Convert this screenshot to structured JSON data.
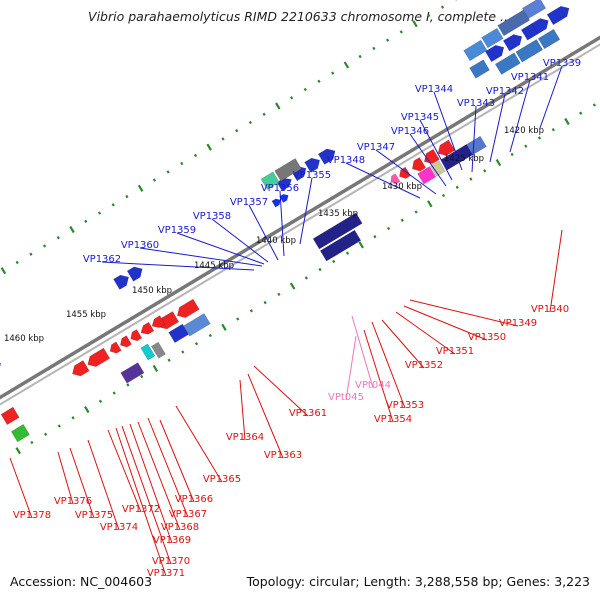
{
  "title": "Vibrio parahaemolyticus RIMD 2210633 chromosome I, complete ...",
  "footer": {
    "accession": "Accession: NC_004603",
    "summary": "Topology: circular; Length: 3,288,558 bp; Genes: 3,223"
  },
  "colors": {
    "forward_label": "#1a1acc",
    "reverse_label": "#dd1111",
    "rna_label": "#ee77bb",
    "backbone": "#777777",
    "ticks": "#2a8a2a",
    "axis_text": "#111111"
  },
  "scale_labels": [
    "1420 kbp",
    "1425 kbp",
    "1430 kbp",
    "1435 kbp",
    "1440 kbp",
    "1445 kbp",
    "1450 kbp",
    "1455 kbp",
    "1460 kbp"
  ],
  "forward_labels": [
    "VP1339",
    "VP1341",
    "VP1342",
    "VP1343",
    "VP1344",
    "VP1345",
    "VP1346",
    "VP1347",
    "VP1348",
    "VP1355",
    "VP1356",
    "VP1357",
    "VP1358",
    "VP1359",
    "VP1360",
    "VP1362"
  ],
  "reverse_labels": [
    "VP1340",
    "VP1349",
    "VP1350",
    "VP1351",
    "VP1352",
    "VP1353",
    "VP1354",
    "VP1361",
    "VP1363",
    "VP1364",
    "VP1365",
    "VP1366",
    "VP1367",
    "VP1368",
    "VP1369",
    "VP1370",
    "VP1371",
    "VP1372",
    "VP1374",
    "VP1375",
    "VP1376",
    "VP1378"
  ],
  "rna_labels": [
    "VPt044",
    "VPt045"
  ]
}
